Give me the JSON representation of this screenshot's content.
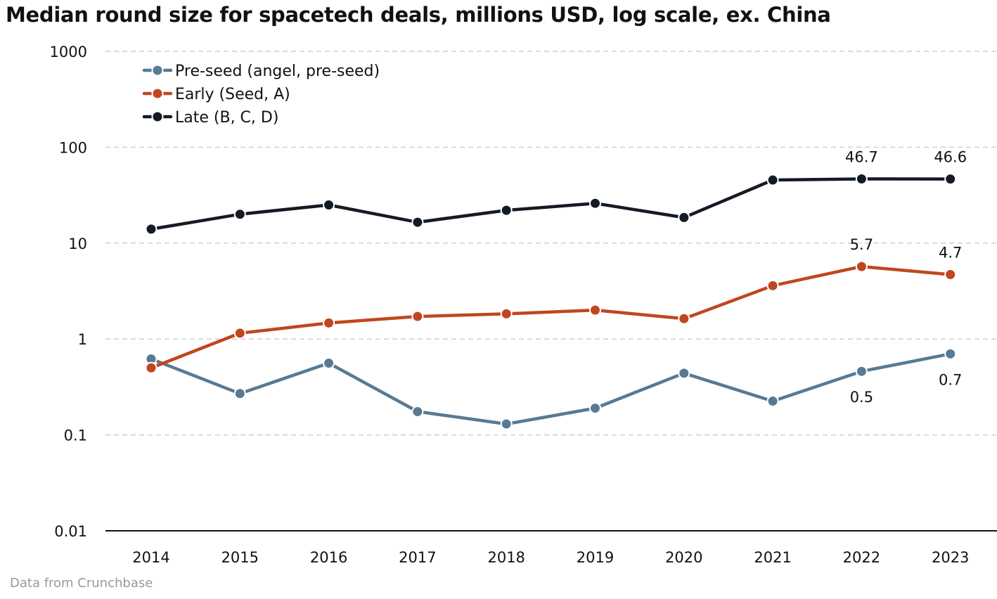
{
  "chart_data": {
    "type": "line",
    "title": "Median round size for spacetech deals, millions USD, log scale, ex. China",
    "source": "Data from Crunchbase",
    "xlabel": "",
    "ylabel": "",
    "y_scale": "log",
    "ylim": [
      0.01,
      1000
    ],
    "y_ticks": [
      {
        "value": 1000,
        "label": "1000"
      },
      {
        "value": 100,
        "label": "100"
      },
      {
        "value": 10,
        "label": "10"
      },
      {
        "value": 1,
        "label": "1"
      },
      {
        "value": 0.1,
        "label": "0.1"
      },
      {
        "value": 0.01,
        "label": "0.01"
      }
    ],
    "grid": "horizontal dashed",
    "legend_position": "top-left",
    "x": [
      "2014",
      "2015",
      "2016",
      "2017",
      "2018",
      "2019",
      "2020",
      "2021",
      "2022",
      "2023"
    ],
    "series": [
      {
        "name": "Pre-seed (angel, pre-seed)",
        "color": "#587a93",
        "values": [
          0.62,
          0.27,
          0.56,
          0.175,
          0.13,
          0.19,
          0.44,
          0.225,
          0.46,
          0.7
        ],
        "labels": [
          {
            "index": 8,
            "text": "0.5",
            "position": "below"
          },
          {
            "index": 9,
            "text": "0.7",
            "position": "below"
          }
        ]
      },
      {
        "name": "Early (Seed, A)",
        "color": "#c0461e",
        "values": [
          0.5,
          1.15,
          1.47,
          1.72,
          1.83,
          2.0,
          1.63,
          3.6,
          5.7,
          4.7
        ],
        "labels": [
          {
            "index": 8,
            "text": "5.7",
            "position": "above"
          },
          {
            "index": 9,
            "text": "4.7",
            "position": "above"
          }
        ]
      },
      {
        "name": "Late (B, C, D)",
        "color": "#141b24",
        "values": [
          14.0,
          20.0,
          25.0,
          16.5,
          22.0,
          26.0,
          18.5,
          45.5,
          46.7,
          46.6
        ],
        "labels": [
          {
            "index": 8,
            "text": "46.7",
            "position": "above"
          },
          {
            "index": 9,
            "text": "46.6",
            "position": "above"
          }
        ]
      }
    ]
  }
}
